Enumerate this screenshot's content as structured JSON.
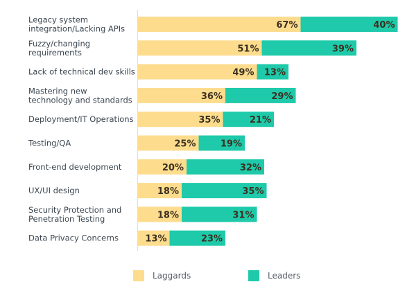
{
  "chart_data": {
    "type": "bar",
    "orientation": "horizontal",
    "stacked": true,
    "categories": [
      "Legacy system\nintegration/Lacking APIs",
      "Fuzzy/changing\nrequirements",
      "Lack of technical dev skills",
      "Mastering new\ntechnology and standards",
      "Deployment/IT Operations",
      "Testing/QA",
      "Front-end development",
      "UX/UI design",
      "Security Protection and\nPenetration Testing",
      "Data Privacy Concerns"
    ],
    "series": [
      {
        "name": "Laggards",
        "color": "#fddc8e",
        "values": [
          67,
          51,
          49,
          36,
          35,
          25,
          20,
          18,
          18,
          13
        ]
      },
      {
        "name": "Leaders",
        "color": "#1ecaaa",
        "values": [
          40,
          39,
          13,
          29,
          21,
          19,
          32,
          35,
          31,
          23
        ]
      }
    ],
    "value_suffix": "%",
    "legend_position": "bottom"
  }
}
